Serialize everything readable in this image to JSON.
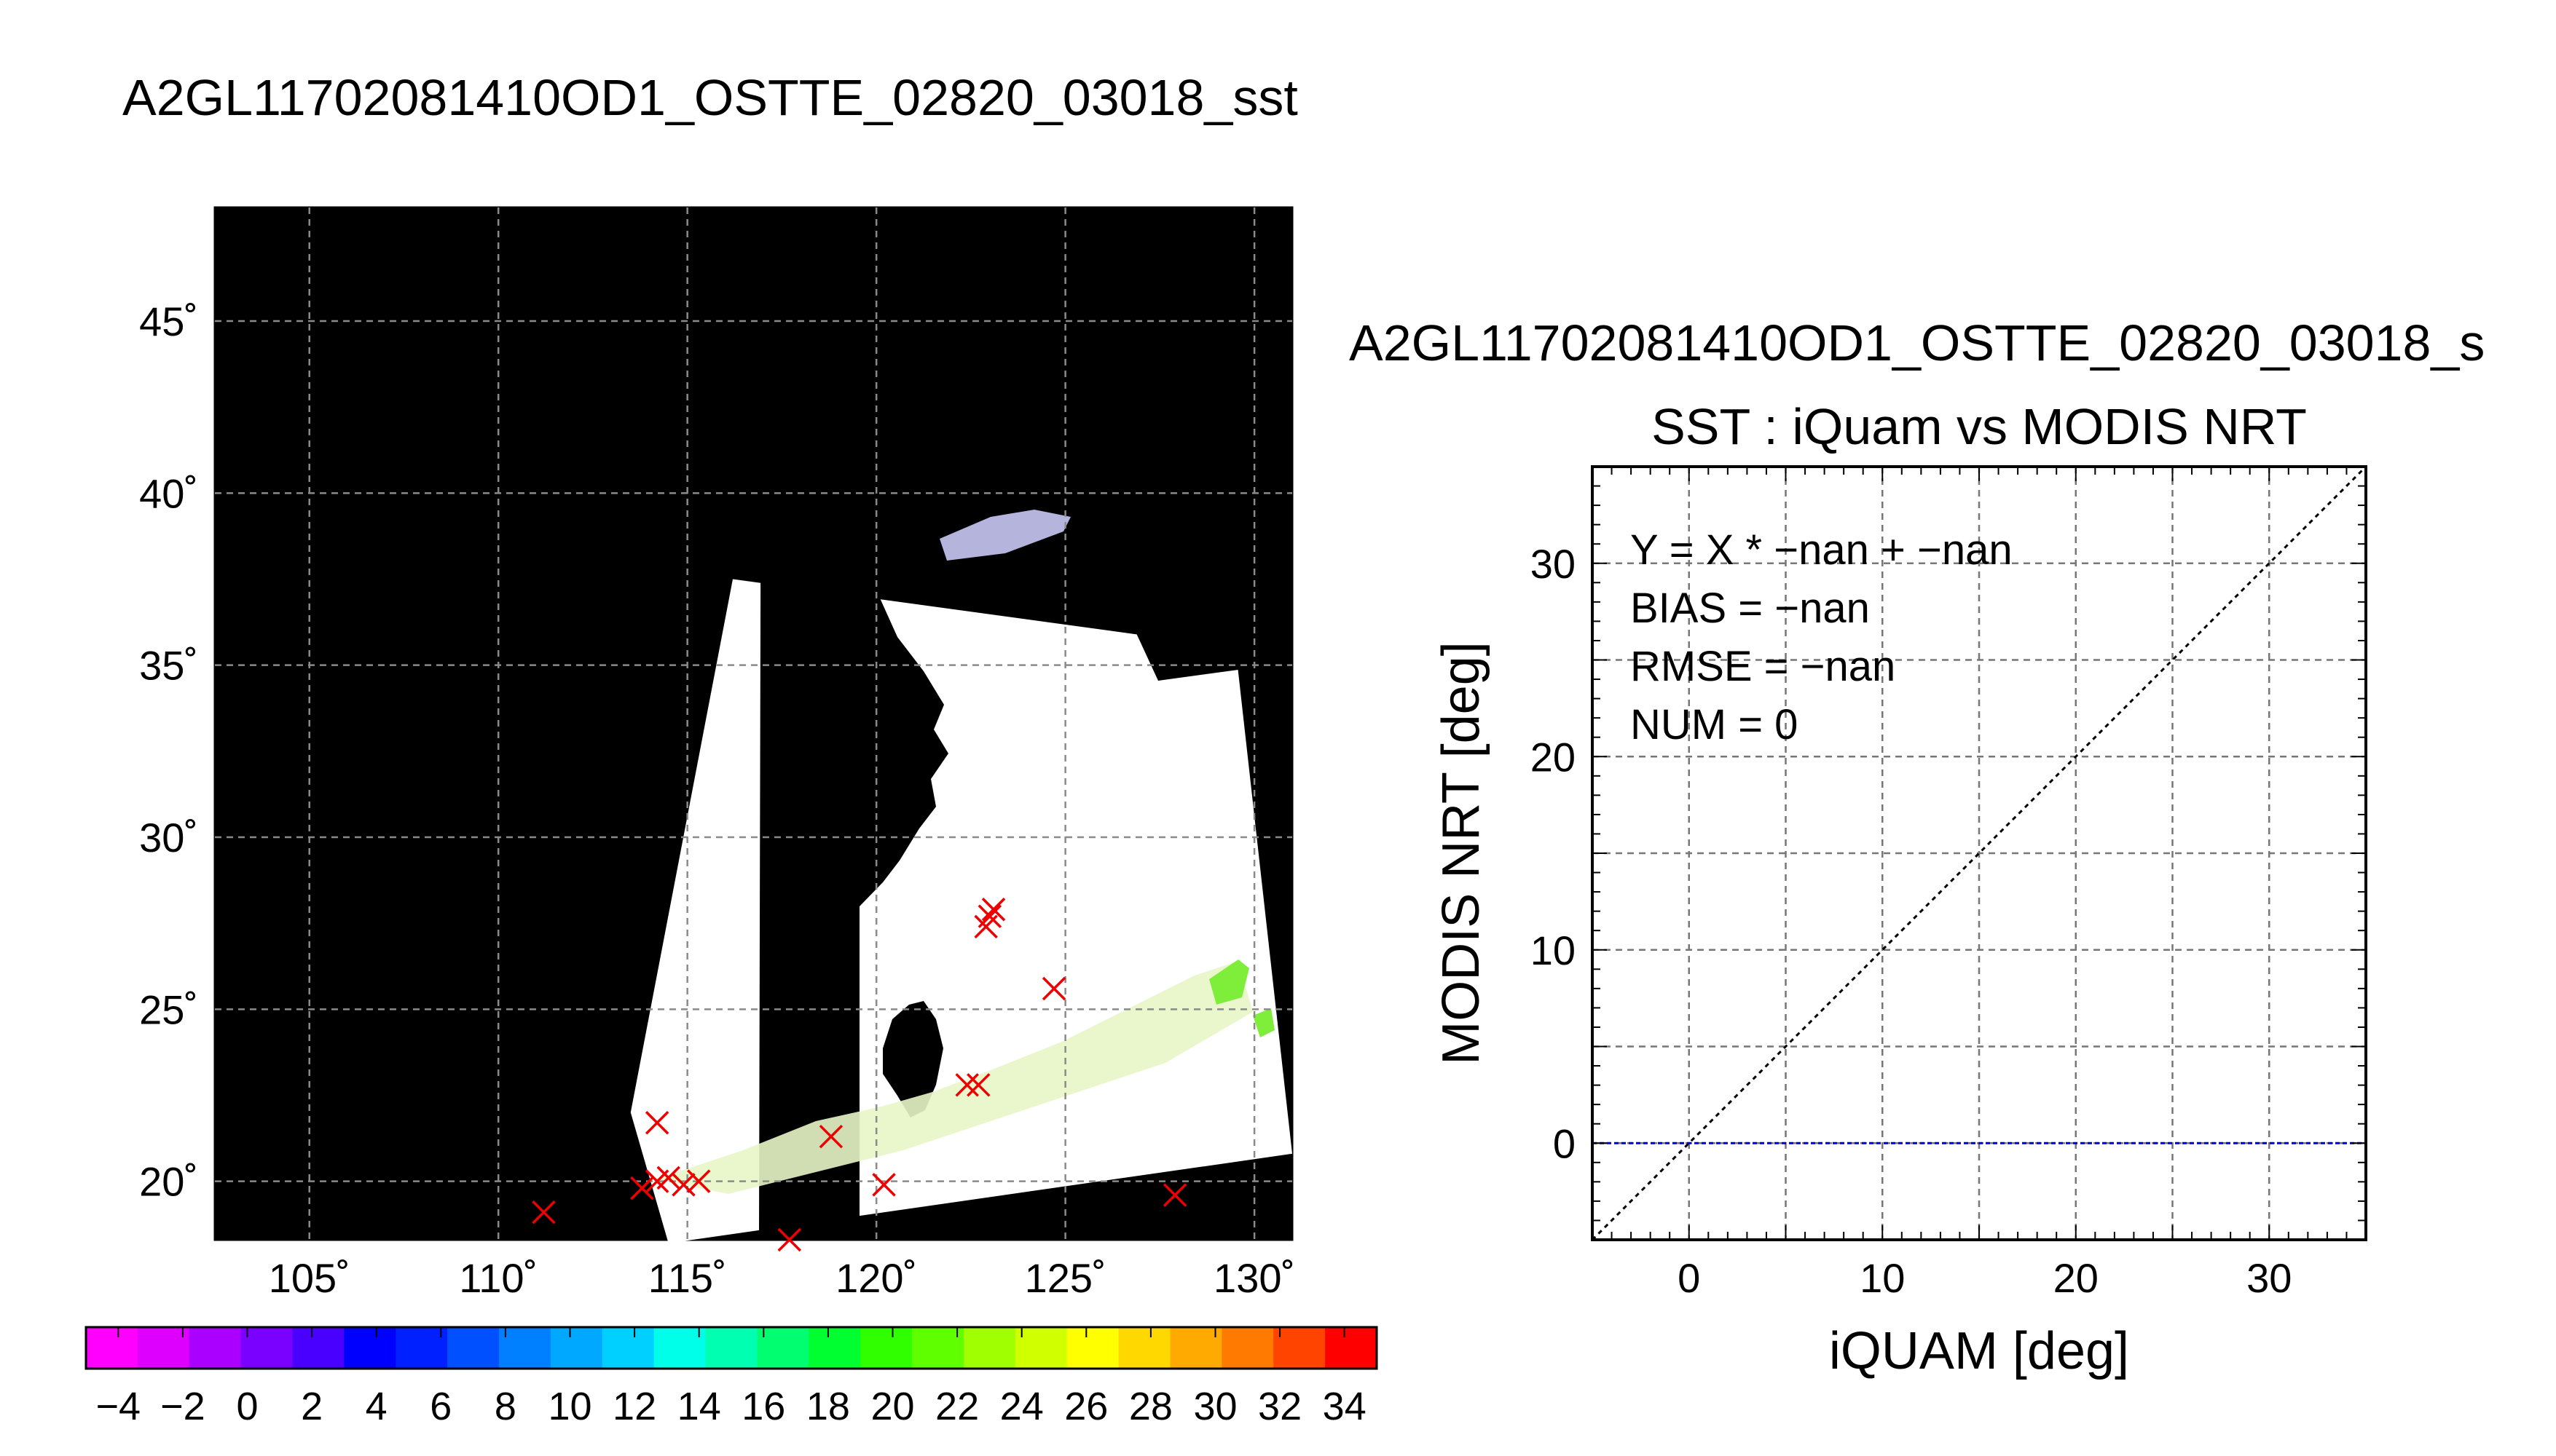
{
  "map_title": "A2GL11702081410OD1_OSTTE_02820_03018_sst",
  "scatter_file_title": "A2GL11702081410OD1_OSTTE_02820_03018_s",
  "colorbar": {
    "min": -5,
    "max": 35,
    "tick_labels": [
      "−4",
      "−2",
      "0",
      "2",
      "4",
      "6",
      "8",
      "10",
      "12",
      "14",
      "16",
      "18",
      "20",
      "22",
      "24",
      "26",
      "28",
      "30",
      "32",
      "34"
    ],
    "colors": [
      "#ff00ff",
      "#dd00ff",
      "#aa00ff",
      "#7a00ff",
      "#4a00ff",
      "#0000ff",
      "#0020ff",
      "#0050ff",
      "#0080ff",
      "#00a8ff",
      "#00d0ff",
      "#00ffe8",
      "#00ffb0",
      "#00ff70",
      "#00ff30",
      "#30ff00",
      "#60ff00",
      "#a0ff00",
      "#d0ff00",
      "#ffff00",
      "#ffd800",
      "#ffaa00",
      "#ff7a00",
      "#ff4400",
      "#ff0000"
    ]
  },
  "chart_data": [
    {
      "type": "map",
      "title": "A2GL11702081410OD1_OSTTE_02820_03018_sst",
      "lon_range": [
        102.5,
        131
      ],
      "lat_range": [
        18.3,
        48.3
      ],
      "x_ticks": [
        105,
        110,
        115,
        120,
        125,
        130
      ],
      "y_ticks": [
        20,
        25,
        30,
        35,
        40,
        45
      ],
      "x_tick_labels": [
        "105˚",
        "110˚",
        "115˚",
        "120˚",
        "125˚",
        "130˚"
      ],
      "y_tick_labels": [
        "20˚",
        "25˚",
        "30˚",
        "35˚",
        "40˚",
        "45˚"
      ],
      "grid": true,
      "swath_corners": [
        [
          113.5,
          22
        ],
        [
          116.2,
          37.5
        ],
        [
          129.5,
          35.5
        ],
        [
          131,
          20.8
        ],
        [
          114.5,
          18.2
        ]
      ],
      "markers": [
        {
          "lon": 111.2,
          "lat": 19.1
        },
        {
          "lon": 114.2,
          "lat": 21.7
        },
        {
          "lon": 113.8,
          "lat": 19.8
        },
        {
          "lon": 114.2,
          "lat": 20.0
        },
        {
          "lon": 114.5,
          "lat": 20.1
        },
        {
          "lon": 114.9,
          "lat": 19.9
        },
        {
          "lon": 115.3,
          "lat": 20.0
        },
        {
          "lon": 117.7,
          "lat": 18.3
        },
        {
          "lon": 118.8,
          "lat": 21.3
        },
        {
          "lon": 120.2,
          "lat": 19.9
        },
        {
          "lon": 122.4,
          "lat": 22.8
        },
        {
          "lon": 122.7,
          "lat": 22.8
        },
        {
          "lon": 122.9,
          "lat": 27.4
        },
        {
          "lon": 123.0,
          "lat": 27.7
        },
        {
          "lon": 123.1,
          "lat": 27.9
        },
        {
          "lon": 124.7,
          "lat": 25.6
        },
        {
          "lon": 127.9,
          "lat": 19.6
        }
      ]
    },
    {
      "type": "scatter",
      "title": "SST : iQuam vs MODIS NRT",
      "xlabel": "iQUAM [deg]",
      "ylabel": "MODIS NRT [deg]",
      "xlim": [
        -5,
        35
      ],
      "ylim": [
        -5,
        35
      ],
      "x_ticks": [
        0,
        10,
        20,
        30
      ],
      "y_ticks": [
        0,
        10,
        20,
        30
      ],
      "grid_step": 5,
      "points": [],
      "reference_lines": [
        {
          "name": "1:1",
          "points": [
            [
              -5,
              -5
            ],
            [
              35,
              35
            ]
          ]
        },
        {
          "name": "fit",
          "points": [
            [
              -5,
              0
            ],
            [
              35,
              0
            ]
          ]
        }
      ],
      "stats": {
        "fit": "Y = X * −nan + −nan",
        "bias": "BIAS = −nan",
        "rmse": "RMSE = −nan",
        "num": "NUM = 0"
      }
    }
  ]
}
